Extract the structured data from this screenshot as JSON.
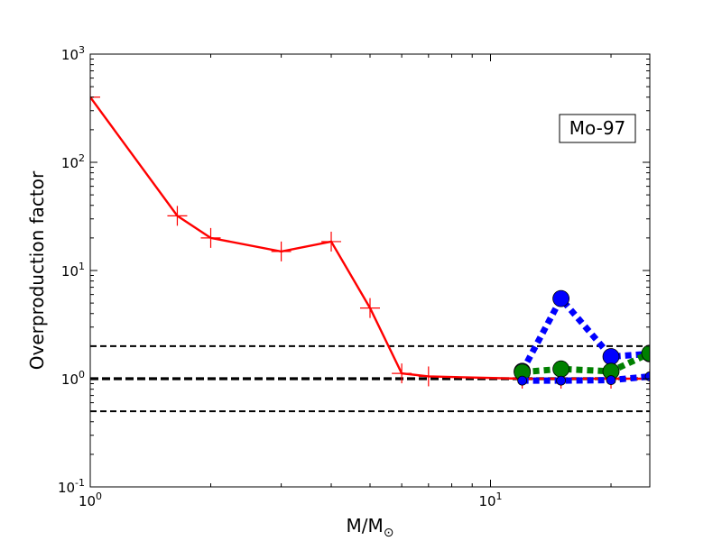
{
  "chart_data": {
    "type": "line",
    "xscale": "log",
    "yscale": "log",
    "xlim": [
      1,
      25
    ],
    "ylim": [
      0.1,
      1000
    ],
    "xlabel": {
      "base": "M/M",
      "sub": "⊙"
    },
    "ylabel": "Overproduction factor",
    "x_ticks": [
      {
        "value": 1,
        "base": "10",
        "exp": "0"
      },
      {
        "value": 10,
        "base": "10",
        "exp": "1"
      }
    ],
    "y_ticks": [
      {
        "value": 0.1,
        "base": "10",
        "exp": "-1"
      },
      {
        "value": 1,
        "base": "10",
        "exp": "0"
      },
      {
        "value": 10,
        "base": "10",
        "exp": "1"
      },
      {
        "value": 100,
        "base": "10",
        "exp": "2"
      },
      {
        "value": 1000,
        "base": "10",
        "exp": "3"
      }
    ],
    "reference_lines": [
      {
        "y": 2.0,
        "style": "dashed",
        "color": "#000000",
        "weight": "thin"
      },
      {
        "y": 1.0,
        "style": "dashed",
        "color": "#000000",
        "weight": "thick"
      },
      {
        "y": 0.5,
        "style": "dashed",
        "color": "#000000",
        "weight": "thin"
      }
    ],
    "series": [
      {
        "color": "#ff0000",
        "line": "solid",
        "marker": "plus",
        "x": [
          1,
          1.65,
          2,
          3,
          4,
          5,
          6,
          7,
          12,
          15,
          20,
          25
        ],
        "y": [
          400,
          32,
          20,
          15,
          18.5,
          4.5,
          1.12,
          1.05,
          1.0,
          1.0,
          1.0,
          1.0
        ]
      },
      {
        "color": "#0000ff",
        "line": "dotted",
        "marker": "circle-large",
        "x": [
          12,
          15,
          20,
          25
        ],
        "y": [
          1.17,
          5.5,
          1.6,
          1.7
        ]
      },
      {
        "color": "#008000",
        "line": "dotted",
        "marker": "circle-large",
        "x": [
          12,
          15,
          20,
          25
        ],
        "y": [
          1.15,
          1.23,
          1.17,
          1.72
        ]
      },
      {
        "color": "#0000ff",
        "line": "dotted",
        "marker": "circle-small",
        "x": [
          12,
          15,
          20,
          25
        ],
        "y": [
          0.96,
          0.96,
          0.97,
          1.05
        ]
      }
    ],
    "annotation": "Mo-97",
    "annotation_position": "top-right"
  }
}
